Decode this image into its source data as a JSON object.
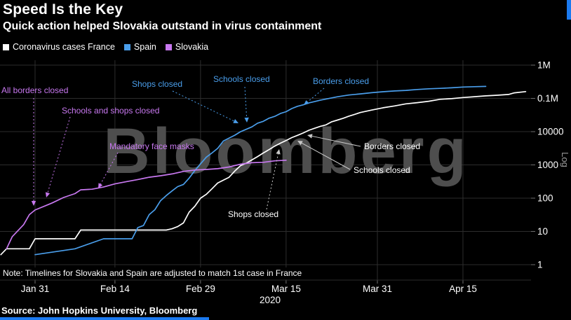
{
  "header": {
    "title": "Speed Is the Key",
    "subtitle": "Quick action helped Slovakia outstand in virus containment"
  },
  "legend": {
    "items": [
      {
        "label": "Coronavirus cases France",
        "color": "#FFFFFF"
      },
      {
        "label": "Spain",
        "color": "#4A9EEB"
      },
      {
        "label": "Slovakia",
        "color": "#C878F0"
      }
    ]
  },
  "watermark": "Bloomberg",
  "note": "Note: Timelines for Slovakia and Spain are adjusted to match 1st case in France",
  "source": "Source: John Hopkins University, Bloomberg",
  "ui": {
    "accent_blue": "#1B7AF0",
    "grid_color": "#2D2D2D",
    "watermark_color": "#4E4E4E",
    "axis_text_color": "#FFFFFF",
    "log_label_color": "#9B9B9B"
  },
  "chart_data": {
    "type": "line",
    "title": "Speed Is the Key",
    "y_scale": "log",
    "y_axis_label": "Log",
    "y_range": [
      1,
      1000000
    ],
    "x_unit": "days since each country's 1st case (timelines aligned to France's 1st case, Jan 24 2020)",
    "x_range_days": [
      1,
      93
    ],
    "year_label": "2020",
    "grid": true,
    "legend_position": "top-left",
    "y_ticks": [
      {
        "label": "1M",
        "value": 1000000
      },
      {
        "label": "0.1M",
        "value": 100000
      },
      {
        "label": "10000",
        "value": 10000
      },
      {
        "label": "1000",
        "value": 1000
      },
      {
        "label": "100",
        "value": 100
      },
      {
        "label": "10",
        "value": 10
      },
      {
        "label": "1",
        "value": 1
      }
    ],
    "x_ticks": [
      {
        "label": "Jan 31",
        "day": 7
      },
      {
        "label": "Feb 14",
        "day": 21
      },
      {
        "label": "Feb 29",
        "day": 36
      },
      {
        "label": "Mar 15",
        "day": 51
      },
      {
        "label": "Mar 31",
        "day": 67
      },
      {
        "label": "Apr 15",
        "day": 82
      }
    ],
    "series": [
      {
        "name": "France",
        "color": "#FFFFFF",
        "points": [
          [
            1,
            2
          ],
          [
            2,
            3
          ],
          [
            6,
            3
          ],
          [
            7,
            6
          ],
          [
            14,
            6
          ],
          [
            15,
            11
          ],
          [
            30,
            11
          ],
          [
            31,
            12
          ],
          [
            32,
            14
          ],
          [
            33,
            18
          ],
          [
            34,
            38
          ],
          [
            35,
            57
          ],
          [
            36,
            100
          ],
          [
            37,
            130
          ],
          [
            38,
            191
          ],
          [
            39,
            285
          ],
          [
            41,
            423
          ],
          [
            42,
            653
          ],
          [
            43,
            949
          ],
          [
            44,
            1126
          ],
          [
            45,
            1412
          ],
          [
            46,
            1784
          ],
          [
            47,
            2281
          ],
          [
            48,
            2876
          ],
          [
            49,
            3661
          ],
          [
            50,
            4499
          ],
          [
            51,
            5423
          ],
          [
            52,
            6633
          ],
          [
            53,
            7730
          ],
          [
            54,
            9134
          ],
          [
            55,
            10995
          ],
          [
            56,
            12612
          ],
          [
            57,
            14459
          ],
          [
            58,
            16018
          ],
          [
            59,
            19856
          ],
          [
            60,
            22304
          ],
          [
            61,
            25233
          ],
          [
            62,
            29155
          ],
          [
            63,
            32964
          ],
          [
            64,
            37575
          ],
          [
            66,
            44550
          ],
          [
            68,
            52128
          ],
          [
            70,
            59105
          ],
          [
            72,
            68605
          ],
          [
            74,
            74390
          ],
          [
            76,
            82048
          ],
          [
            78,
            93790
          ],
          [
            80,
            98076
          ],
          [
            82,
            106206
          ],
          [
            84,
            112606
          ],
          [
            86,
            119151
          ],
          [
            88,
            124114
          ],
          [
            90,
            131287
          ],
          [
            91,
            146906
          ],
          [
            93,
            159877
          ]
        ]
      },
      {
        "name": "Spain",
        "color": "#4A9EEB",
        "points": [
          [
            7,
            2
          ],
          [
            14,
            3
          ],
          [
            19,
            6
          ],
          [
            24,
            6
          ],
          [
            25,
            13
          ],
          [
            26,
            15
          ],
          [
            27,
            32
          ],
          [
            28,
            45
          ],
          [
            29,
            84
          ],
          [
            30,
            120
          ],
          [
            31,
            165
          ],
          [
            32,
            222
          ],
          [
            33,
            259
          ],
          [
            34,
            400
          ],
          [
            35,
            673
          ],
          [
            36,
            1073
          ],
          [
            37,
            1695
          ],
          [
            38,
            2277
          ],
          [
            39,
            3146
          ],
          [
            40,
            5232
          ],
          [
            41,
            6391
          ],
          [
            42,
            7798
          ],
          [
            43,
            9942
          ],
          [
            44,
            11748
          ],
          [
            45,
            13910
          ],
          [
            46,
            17963
          ],
          [
            47,
            20410
          ],
          [
            48,
            25374
          ],
          [
            49,
            28768
          ],
          [
            50,
            35136
          ],
          [
            51,
            39885
          ],
          [
            52,
            49515
          ],
          [
            53,
            57786
          ],
          [
            54,
            64059
          ],
          [
            55,
            73235
          ],
          [
            56,
            80110
          ],
          [
            57,
            87956
          ],
          [
            58,
            95923
          ],
          [
            60,
            112065
          ],
          [
            62,
            126168
          ],
          [
            64,
            136675
          ],
          [
            66,
            148220
          ],
          [
            68,
            158273
          ],
          [
            70,
            166831
          ],
          [
            72,
            174060
          ],
          [
            74,
            184948
          ],
          [
            76,
            194416
          ],
          [
            78,
            200210
          ],
          [
            80,
            208389
          ],
          [
            82,
            219764
          ],
          [
            84,
            224330
          ],
          [
            86,
            229450
          ]
        ]
      },
      {
        "name": "Slovakia",
        "color": "#C878F0",
        "points": [
          [
            2,
            3
          ],
          [
            3,
            7
          ],
          [
            5,
            16
          ],
          [
            6,
            32
          ],
          [
            7,
            44
          ],
          [
            9,
            61
          ],
          [
            10,
            72
          ],
          [
            12,
            105
          ],
          [
            14,
            137
          ],
          [
            15,
            178
          ],
          [
            17,
            186
          ],
          [
            19,
            216
          ],
          [
            21,
            269
          ],
          [
            23,
            314
          ],
          [
            25,
            363
          ],
          [
            27,
            426
          ],
          [
            29,
            471
          ],
          [
            31,
            534
          ],
          [
            33,
            636
          ],
          [
            35,
            701
          ],
          [
            37,
            728
          ],
          [
            39,
            769
          ],
          [
            41,
            863
          ],
          [
            43,
            1049
          ],
          [
            45,
            1161
          ],
          [
            47,
            1199
          ],
          [
            49,
            1325
          ],
          [
            51,
            1381
          ]
        ]
      }
    ],
    "annotations": [
      {
        "id": "sk-borders",
        "label": "All borders closed",
        "country": "Slovakia"
      },
      {
        "id": "sk-schools-shops",
        "label": "Schools and shops closed",
        "country": "Slovakia"
      },
      {
        "id": "sk-masks",
        "label": "Mandatory face masks",
        "country": "Slovakia"
      },
      {
        "id": "es-shops",
        "label": "Shops closed",
        "country": "Spain"
      },
      {
        "id": "es-schools",
        "label": "Schools closed",
        "country": "Spain"
      },
      {
        "id": "es-borders",
        "label": "Borders closed",
        "country": "Spain"
      },
      {
        "id": "fr-shops",
        "label": "Shops closed",
        "country": "France"
      },
      {
        "id": "fr-schools",
        "label": "Schools closed",
        "country": "France"
      },
      {
        "id": "fr-borders",
        "label": "Borders closed",
        "country": "France"
      }
    ]
  }
}
